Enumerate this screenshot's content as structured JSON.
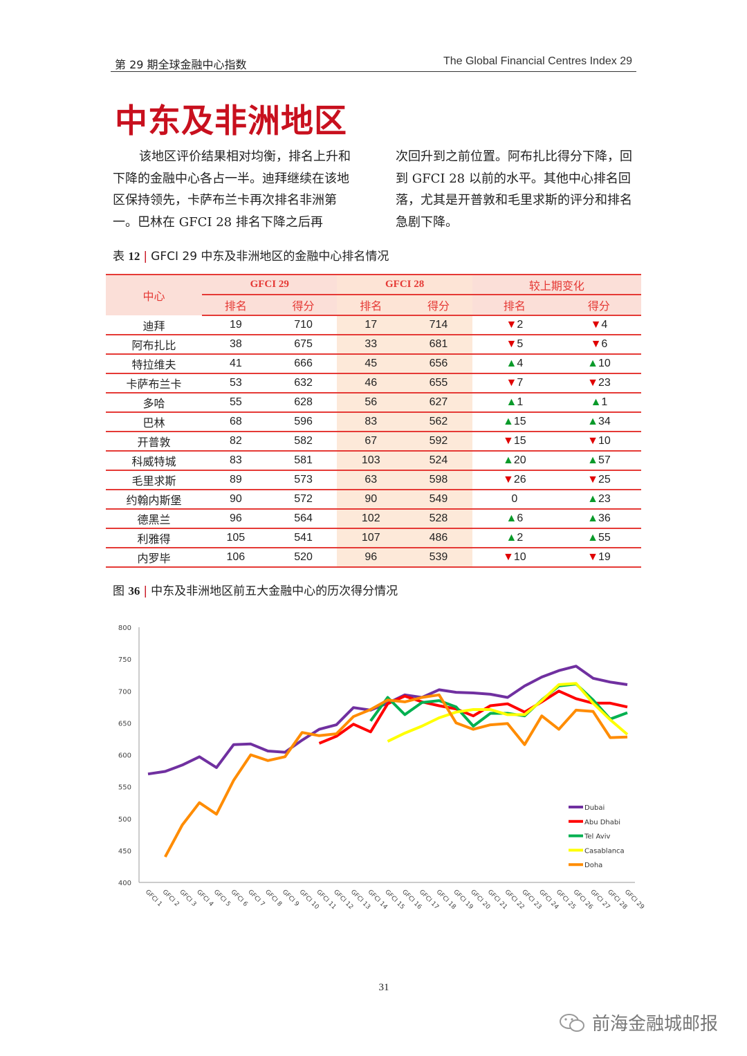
{
  "header": {
    "left": "第 29 期全球金融中心指数",
    "right": "The Global Financial Centres Index 29"
  },
  "title": "中东及非洲地区",
  "paragraph": {
    "col1": "该地区评价结果相对均衡，排名上升和下降的金融中心各占一半。迪拜继续在该地区保持领先，卡萨布兰卡再次排名非洲第一。巴林在 GFCI 28 排名下降之后再",
    "col2": "次回升到之前位置。阿布扎比得分下降，回到 GFCI 28 以前的水平。其他中心排名回落，尤其是开普敦和毛里求斯的评分和排名急剧下降。"
  },
  "table_caption": {
    "prefix": "表",
    "num": "12",
    "text": "GFCI 29 中东及非洲地区的金融中心排名情况"
  },
  "table": {
    "headers": {
      "center": "中心",
      "g29": "GFCI 29",
      "g28": "GFCI 28",
      "change": "较上期变化",
      "rank": "排名",
      "score": "得分"
    },
    "rows": [
      [
        "迪拜",
        "19",
        "710",
        "17",
        "714",
        "▼2",
        "▼4"
      ],
      [
        "阿布扎比",
        "38",
        "675",
        "33",
        "681",
        "▼5",
        "▼6"
      ],
      [
        "特拉维夫",
        "41",
        "666",
        "45",
        "656",
        "▲4",
        "▲10"
      ],
      [
        "卡萨布兰卡",
        "53",
        "632",
        "46",
        "655",
        "▼7",
        "▼23"
      ],
      [
        "多哈",
        "55",
        "628",
        "56",
        "627",
        "▲1",
        "▲1"
      ],
      [
        "巴林",
        "68",
        "596",
        "83",
        "562",
        "▲15",
        "▲34"
      ],
      [
        "开普敦",
        "82",
        "582",
        "67",
        "592",
        "▼15",
        "▼10"
      ],
      [
        "科威特城",
        "83",
        "581",
        "103",
        "524",
        "▲20",
        "▲57"
      ],
      [
        "毛里求斯",
        "89",
        "573",
        "63",
        "598",
        "▼26",
        "▼25"
      ],
      [
        "约翰内斯堡",
        "90",
        "572",
        "90",
        "549",
        "0",
        "▲23"
      ],
      [
        "德黑兰",
        "96",
        "564",
        "102",
        "528",
        "▲6",
        "▲36"
      ],
      [
        "利雅得",
        "105",
        "541",
        "107",
        "486",
        "▲2",
        "▲55"
      ],
      [
        "内罗毕",
        "106",
        "520",
        "96",
        "539",
        "▼10",
        "▼19"
      ]
    ]
  },
  "figure_caption": {
    "prefix": "图",
    "num": "36",
    "text": "中东及非洲地区前五大金融中心的历次得分情况"
  },
  "chart_data": {
    "type": "line",
    "categories": [
      "GFCI 1",
      "GFCI 2",
      "GFCI 3",
      "GFCI 4",
      "GFCI 5",
      "GFCI 6",
      "GFCI 7",
      "GFCI 8",
      "GFCI 9",
      "GFCI 10",
      "GFCI 11",
      "GFCI 12",
      "GFCI 13",
      "GFCI 14",
      "GFCI 15",
      "GFCI 16",
      "GFCI 17",
      "GFCI 18",
      "GFCI 19",
      "GFCI 20",
      "GFCI 21",
      "GFCI 22",
      "GFCI 23",
      "GFCI 24",
      "GFCI 25",
      "GFCI 26",
      "GFCI 27",
      "GFCI 28",
      "GFCI 29"
    ],
    "ylim": [
      400,
      800
    ],
    "yticks": [
      400,
      450,
      500,
      550,
      600,
      650,
      700,
      750,
      800
    ],
    "grid": false,
    "legend": "bottom-right",
    "series": [
      {
        "name": "Dubai",
        "color": "#7030a0",
        "values": [
          570,
          574,
          584,
          597,
          580,
          616,
          617,
          606,
          604,
          623,
          640,
          647,
          674,
          670,
          681,
          694,
          690,
          702,
          698,
          697,
          695,
          690,
          708,
          722,
          732,
          739,
          720,
          714,
          710
        ]
      },
      {
        "name": "Abu Dhabi",
        "color": "#ff0000",
        "values": [
          null,
          null,
          null,
          null,
          null,
          null,
          null,
          null,
          null,
          null,
          618,
          629,
          648,
          636,
          680,
          692,
          683,
          677,
          672,
          661,
          677,
          680,
          667,
          683,
          700,
          688,
          681,
          681,
          675
        ]
      },
      {
        "name": "Tel Aviv",
        "color": "#00b050",
        "values": [
          null,
          null,
          null,
          null,
          null,
          null,
          null,
          null,
          null,
          null,
          null,
          null,
          null,
          653,
          690,
          663,
          682,
          685,
          675,
          645,
          665,
          665,
          661,
          686,
          708,
          711,
          686,
          656,
          666
        ]
      },
      {
        "name": "Casablanca",
        "color": "#ffff00",
        "values": [
          null,
          null,
          null,
          null,
          null,
          null,
          null,
          null,
          null,
          null,
          null,
          null,
          null,
          null,
          621,
          634,
          645,
          658,
          667,
          671,
          671,
          663,
          663,
          685,
          710,
          712,
          681,
          655,
          632
        ]
      },
      {
        "name": "Doha",
        "color": "#ff8c00",
        "values": [
          null,
          440,
          490,
          525,
          507,
          560,
          600,
          591,
          597,
          635,
          630,
          633,
          660,
          671,
          686,
          683,
          690,
          694,
          650,
          640,
          647,
          649,
          616,
          661,
          640,
          670,
          668,
          627,
          628
        ]
      }
    ]
  },
  "page_number": "31",
  "watermark": "前海金融城邮报"
}
